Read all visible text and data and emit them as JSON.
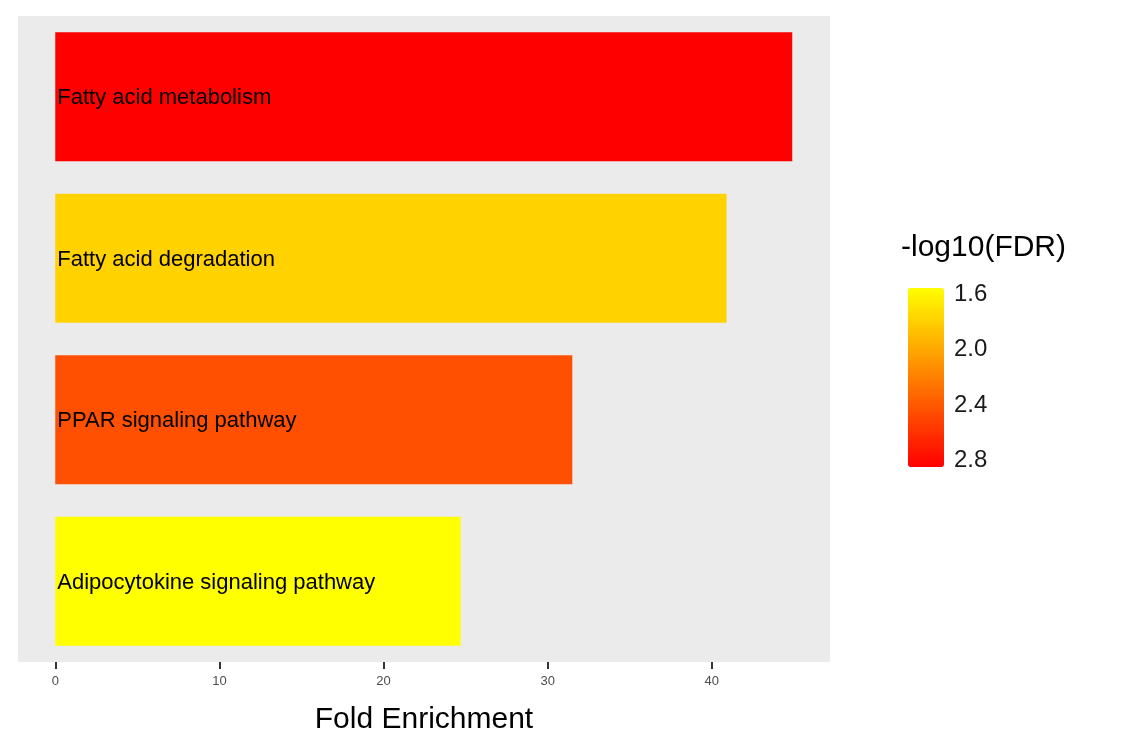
{
  "chart_data": {
    "type": "bar",
    "orientation": "horizontal",
    "categories": [
      "Fatty acid metabolism",
      "Fatty acid degradation",
      "PPAR signaling pathway",
      "Adipocytokine signaling pathway"
    ],
    "values": [
      44.9,
      40.9,
      31.5,
      24.7
    ],
    "cvalues": [
      2.86,
      1.8,
      2.46,
      1.57
    ],
    "clim": [
      1.57,
      2.86
    ],
    "cticks": [
      1.6,
      {
        "value": 2,
        "label": "2.0"
      },
      2.4,
      2.8
    ],
    "clabel": "-log10(FDR)",
    "xlabel": "Fold Enrichment",
    "xlim": [
      -2.27,
      47.2
    ],
    "xticks": [
      0,
      10,
      20,
      30,
      40
    ],
    "grid": false
  }
}
